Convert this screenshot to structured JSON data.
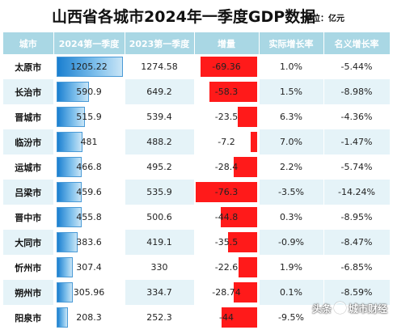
{
  "title": "山西省各城市2024年一季度GDP数据",
  "unit": "单位：亿元",
  "watermark": {
    "prefix": "头条",
    "handle": "城市财经"
  },
  "colors": {
    "header_bg": "#a9d7e4",
    "gdp_bar": "#1a7fd0",
    "inc_bar": "#ff1a1a",
    "shade": "#e5f3f8"
  },
  "chart_data": {
    "type": "table",
    "columns": [
      "城市",
      "2024第一季度",
      "2023第一季度",
      "增量",
      "实际增长率",
      "名义增长率"
    ],
    "rows": [
      {
        "city": "太原市",
        "gdp2024": "1205.22",
        "gdp2023": "1274.58",
        "inc": "-69.36",
        "real": "1.0%",
        "nominal": "-5.44%"
      },
      {
        "city": "长治市",
        "gdp2024": "590.9",
        "gdp2023": "649.2",
        "inc": "-58.3",
        "real": "1.5%",
        "nominal": "-8.98%"
      },
      {
        "city": "晋城市",
        "gdp2024": "515.9",
        "gdp2023": "539.4",
        "inc": "-23.5",
        "real": "6.3%",
        "nominal": "-4.36%"
      },
      {
        "city": "临汾市",
        "gdp2024": "481",
        "gdp2023": "488.2",
        "inc": "-7.2",
        "real": "7.0%",
        "nominal": "-1.47%"
      },
      {
        "city": "运城市",
        "gdp2024": "466.8",
        "gdp2023": "495.2",
        "inc": "-28.4",
        "real": "2.2%",
        "nominal": "-5.74%"
      },
      {
        "city": "吕梁市",
        "gdp2024": "459.6",
        "gdp2023": "535.9",
        "inc": "-76.3",
        "real": "-3.5%",
        "nominal": "-14.24%"
      },
      {
        "city": "晋中市",
        "gdp2024": "455.8",
        "gdp2023": "500.6",
        "inc": "-44.8",
        "real": "0.3%",
        "nominal": "-8.95%"
      },
      {
        "city": "大同市",
        "gdp2024": "383.6",
        "gdp2023": "419.1",
        "inc": "-35.5",
        "real": "-0.9%",
        "nominal": "-8.47%"
      },
      {
        "city": "忻州市",
        "gdp2024": "307.4",
        "gdp2023": "330",
        "inc": "-22.6",
        "real": "1.9%",
        "nominal": "-6.85%"
      },
      {
        "city": "朔州市",
        "gdp2024": "305.96",
        "gdp2023": "334.7",
        "inc": "-28.74",
        "real": "0.1%",
        "nominal": "-8.59%"
      },
      {
        "city": "阳泉市",
        "gdp2024": "208.3",
        "gdp2023": "252.3",
        "inc": "-44",
        "real": "-9.5%",
        "nominal": ""
      }
    ]
  }
}
